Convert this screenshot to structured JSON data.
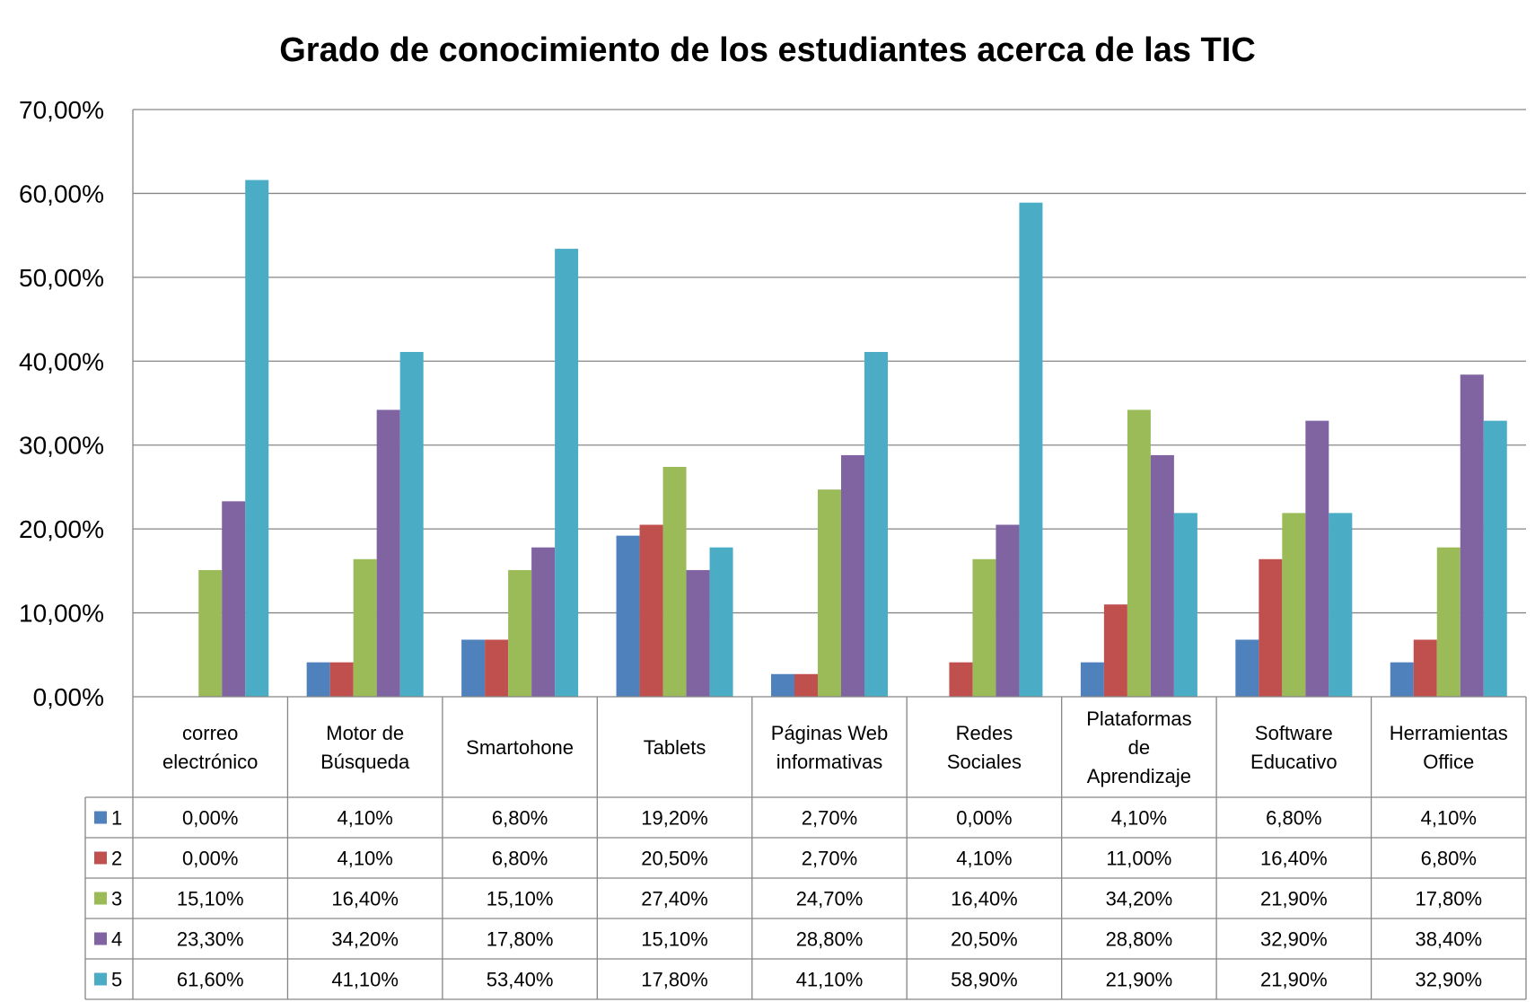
{
  "chart_data": {
    "type": "bar",
    "title": "Grado de conocimiento de los estudiantes acerca de las TIC",
    "xlabel": "",
    "ylabel": "",
    "ylim": [
      0,
      70
    ],
    "yticks": [
      "0,00%",
      "10,00%",
      "20,00%",
      "30,00%",
      "40,00%",
      "50,00%",
      "60,00%",
      "70,00%"
    ],
    "grid": true,
    "legend": "data-table",
    "categories": [
      [
        "correo",
        "electrónico"
      ],
      [
        "Motor de",
        "Búsqueda"
      ],
      [
        "Smartohone"
      ],
      [
        "Tablets"
      ],
      [
        "Páginas Web",
        "informativas"
      ],
      [
        "Redes",
        "Sociales"
      ],
      [
        "Plataformas",
        "de",
        "Aprendizaje"
      ],
      [
        "Software",
        "Educativo"
      ],
      [
        "Herramientas",
        "Office"
      ]
    ],
    "series": [
      {
        "name": "1",
        "color": "#4F81BD",
        "values": [
          0,
          4.1,
          6.8,
          19.2,
          2.7,
          0,
          4.1,
          6.8,
          4.1
        ],
        "labels": [
          "0,00%",
          "4,10%",
          "6,80%",
          "19,20%",
          "2,70%",
          "0,00%",
          "4,10%",
          "6,80%",
          "4,10%"
        ]
      },
      {
        "name": "2",
        "color": "#C0504D",
        "values": [
          0,
          4.1,
          6.8,
          20.5,
          2.7,
          4.1,
          11.0,
          16.4,
          6.8
        ],
        "labels": [
          "0,00%",
          "4,10%",
          "6,80%",
          "20,50%",
          "2,70%",
          "4,10%",
          "11,00%",
          "16,40%",
          "6,80%"
        ]
      },
      {
        "name": "3",
        "color": "#9BBB59",
        "values": [
          15.1,
          16.4,
          15.1,
          27.4,
          24.7,
          16.4,
          34.2,
          21.9,
          17.8
        ],
        "labels": [
          "15,10%",
          "16,40%",
          "15,10%",
          "27,40%",
          "24,70%",
          "16,40%",
          "34,20%",
          "21,90%",
          "17,80%"
        ]
      },
      {
        "name": "4",
        "color": "#8064A2",
        "values": [
          23.3,
          34.2,
          17.8,
          15.1,
          28.8,
          20.5,
          28.8,
          32.9,
          38.4
        ],
        "labels": [
          "23,30%",
          "34,20%",
          "17,80%",
          "15,10%",
          "28,80%",
          "20,50%",
          "28,80%",
          "32,90%",
          "38,40%"
        ]
      },
      {
        "name": "5",
        "color": "#4BACC6",
        "values": [
          61.6,
          41.1,
          53.4,
          17.8,
          41.1,
          58.9,
          21.9,
          21.9,
          32.9
        ],
        "labels": [
          "61,60%",
          "41,10%",
          "53,40%",
          "17,80%",
          "41,10%",
          "58,90%",
          "21,90%",
          "21,90%",
          "32,90%"
        ]
      }
    ]
  }
}
